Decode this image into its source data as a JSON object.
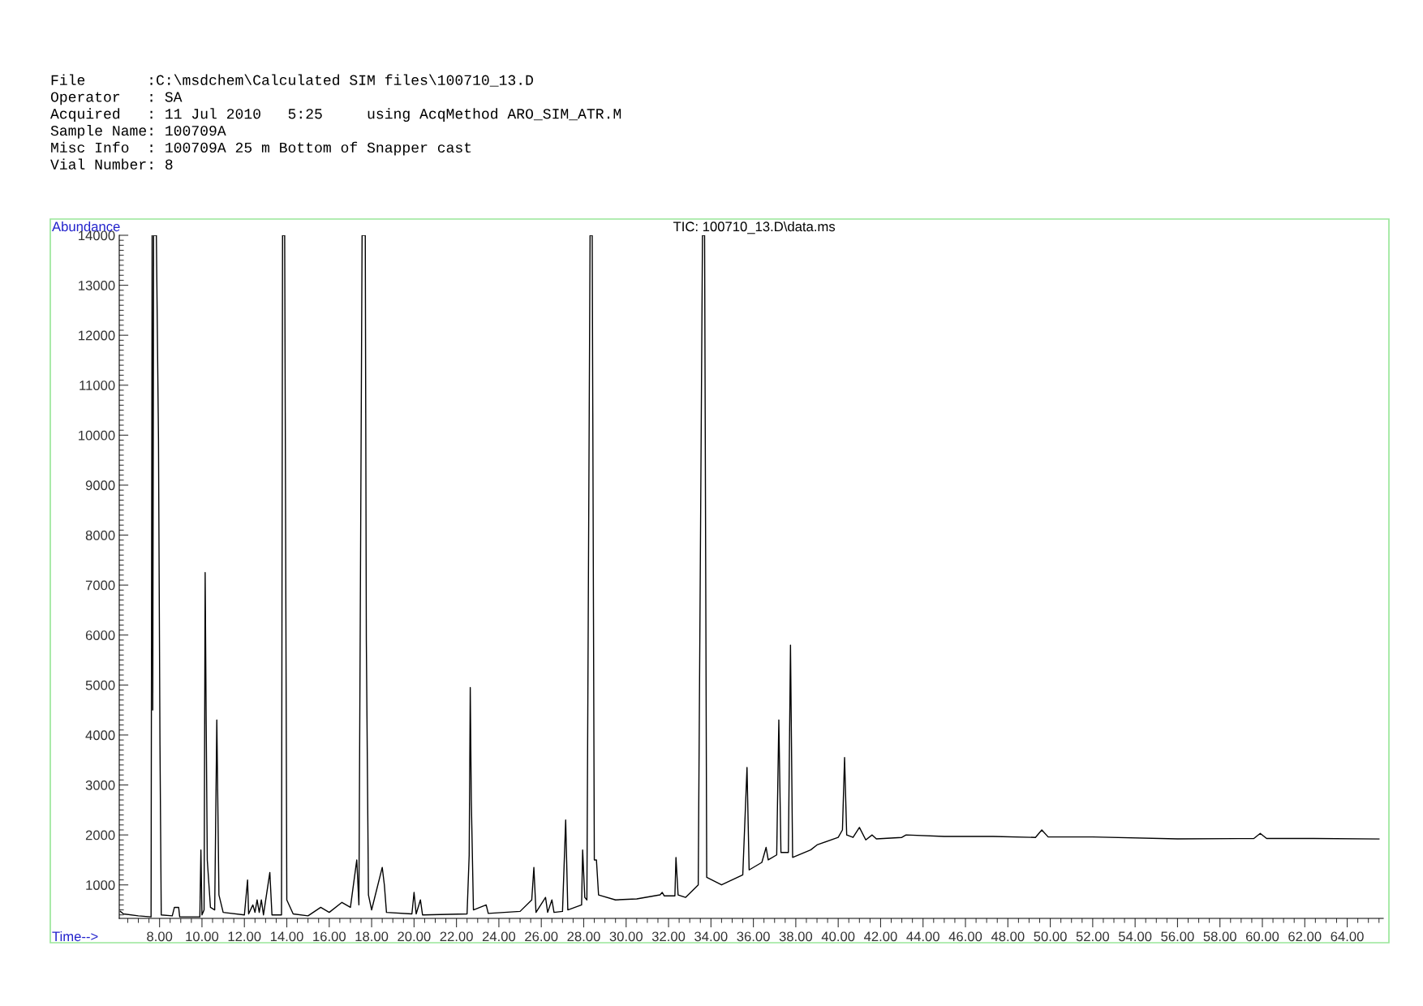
{
  "chart_data": {
    "type": "line",
    "title": "TIC: 100710_13.D\\data.ms",
    "xlabel": "Time-->",
    "ylabel": "Abundance",
    "annotations": [
      "File       :C:\\msdchem\\Calculated SIM files\\100710_13.D",
      "Operator   : SA",
      "Acquired   : 11 Jul 2010   5:25     using AcqMethod ARO_SIM_ATR.M",
      "Sample Name: 100709A",
      "Misc Info  : 100709A 25 m Bottom of Snapper cast",
      "Vial Number: 8"
    ],
    "x": [
      6.15,
      6.3,
      7.0,
      7.6,
      7.65,
      7.68,
      7.72,
      7.85,
      7.95,
      8.02,
      8.08,
      8.6,
      8.7,
      8.9,
      8.95,
      9.9,
      9.95,
      10.0,
      10.1,
      10.15,
      10.2,
      10.25,
      10.4,
      10.6,
      10.7,
      10.8,
      11.0,
      12.0,
      12.15,
      12.2,
      12.4,
      12.5,
      12.6,
      12.7,
      12.8,
      12.9,
      13.2,
      13.3,
      13.75,
      13.8,
      13.9,
      14.0,
      14.3,
      15.0,
      15.6,
      16.0,
      16.6,
      17.0,
      17.3,
      17.4,
      17.55,
      17.7,
      17.75,
      17.85,
      18.0,
      18.5,
      18.6,
      18.7,
      19.9,
      20.0,
      20.1,
      20.3,
      20.4,
      22.5,
      22.6,
      22.65,
      22.7,
      22.8,
      23.4,
      23.5,
      25.0,
      25.55,
      25.65,
      25.75,
      26.2,
      26.3,
      26.5,
      26.6,
      27.0,
      27.15,
      27.25,
      27.9,
      27.95,
      28.05,
      28.15,
      28.3,
      28.4,
      28.5,
      28.6,
      28.7,
      29.5,
      30.5,
      31.6,
      31.7,
      31.8,
      32.3,
      32.35,
      32.45,
      32.8,
      33.4,
      33.6,
      33.7,
      33.8,
      34.5,
      35.5,
      35.7,
      35.8,
      36.4,
      36.6,
      36.7,
      37.1,
      37.2,
      37.3,
      37.65,
      37.75,
      37.85,
      38.7,
      39.0,
      40.0,
      40.2,
      40.3,
      40.4,
      40.7,
      41.0,
      41.3,
      41.6,
      41.8,
      43.0,
      43.2,
      45.0,
      47.3,
      49.3,
      49.6,
      49.9,
      52.0,
      56.0,
      59.6,
      59.9,
      60.2,
      62.4,
      65.5
    ],
    "series": [
      {
        "color": "#000000",
        "values": [
          470,
          420,
          380,
          360,
          14000,
          4500,
          14000,
          14000,
          9900,
          3800,
          400,
          380,
          550,
          550,
          360,
          360,
          1700,
          400,
          500,
          7250,
          4200,
          1500,
          550,
          500,
          4300,
          800,
          450,
          400,
          1100,
          420,
          600,
          450,
          700,
          450,
          700,
          400,
          1250,
          400,
          400,
          14000,
          14000,
          700,
          420,
          380,
          550,
          450,
          650,
          550,
          1500,
          600,
          14000,
          14000,
          5900,
          800,
          500,
          1350,
          1000,
          450,
          420,
          850,
          420,
          700,
          400,
          420,
          1600,
          4950,
          2700,
          500,
          600,
          430,
          470,
          700,
          1350,
          450,
          750,
          450,
          700,
          450,
          470,
          2300,
          500,
          600,
          1700,
          750,
          700,
          14000,
          14000,
          1500,
          1500,
          800,
          700,
          720,
          800,
          850,
          780,
          780,
          1550,
          800,
          750,
          1000,
          14000,
          14000,
          1150,
          1000,
          1200,
          3350,
          1300,
          1450,
          1750,
          1500,
          1600,
          4300,
          1650,
          1650,
          5800,
          1550,
          1700,
          1800,
          1950,
          2100,
          3550,
          2000,
          1950,
          2150,
          1900,
          2000,
          1920,
          1950,
          2000,
          1970,
          1970,
          1950,
          2100,
          1960,
          1960,
          1920,
          1930,
          2030,
          1930,
          1930,
          1920
        ]
      }
    ],
    "xlim": [
      6.1,
      65.7
    ],
    "ylim": [
      330,
      14000
    ],
    "xticks": [
      {
        "value": 8,
        "label": "8.00"
      },
      {
        "value": 10,
        "label": "10.00"
      },
      {
        "value": 12,
        "label": "12.00"
      },
      {
        "value": 14,
        "label": "14.00"
      },
      {
        "value": 16,
        "label": "16.00"
      },
      {
        "value": 18,
        "label": "18.00"
      },
      {
        "value": 20,
        "label": "20.00"
      },
      {
        "value": 22,
        "label": "22.00"
      },
      {
        "value": 24,
        "label": "24.00"
      },
      {
        "value": 26,
        "label": "26.00"
      },
      {
        "value": 28,
        "label": "28.00"
      },
      {
        "value": 30,
        "label": "30.00"
      },
      {
        "value": 32,
        "label": "32.00"
      },
      {
        "value": 34,
        "label": "34.00"
      },
      {
        "value": 36,
        "label": "36.00"
      },
      {
        "value": 38,
        "label": "38.00"
      },
      {
        "value": 40,
        "label": "40.00"
      },
      {
        "value": 42,
        "label": "42.00"
      },
      {
        "value": 44,
        "label": "44.00"
      },
      {
        "value": 46,
        "label": "46.00"
      },
      {
        "value": 48,
        "label": "48.00"
      },
      {
        "value": 50,
        "label": "50.00"
      },
      {
        "value": 52,
        "label": "52.00"
      },
      {
        "value": 54,
        "label": "54.00"
      },
      {
        "value": 56,
        "label": "56.00"
      },
      {
        "value": 58,
        "label": "58.00"
      },
      {
        "value": 60,
        "label": "60.00"
      },
      {
        "value": 62,
        "label": "62.00"
      },
      {
        "value": 64,
        "label": "64.00"
      }
    ],
    "yticks": [
      1000,
      2000,
      3000,
      4000,
      5000,
      6000,
      7000,
      8000,
      9000,
      10000,
      11000,
      12000,
      13000,
      14000
    ],
    "grid": false,
    "legend": false,
    "marker": "none",
    "line_style": "solid"
  }
}
